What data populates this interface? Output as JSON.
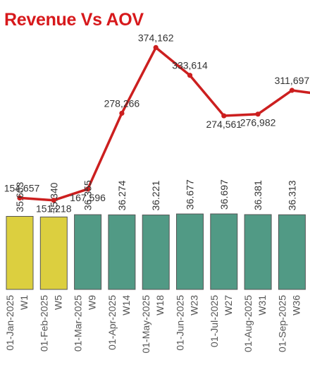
{
  "chart_data": {
    "type": "bar",
    "title": "Revenue Vs AOV",
    "categories": [
      {
        "date": "01-Jan-2025",
        "week": "W1"
      },
      {
        "date": "01-Feb-2025",
        "week": "W5"
      },
      {
        "date": "01-Mar-2025",
        "week": "W9"
      },
      {
        "date": "01-Apr-2025",
        "week": "W14"
      },
      {
        "date": "01-May-2025",
        "week": "W18"
      },
      {
        "date": "01-Jun-2025",
        "week": "W23"
      },
      {
        "date": "01-Jul-2025",
        "week": "W27"
      },
      {
        "date": "01-Aug-2025",
        "week": "W31"
      },
      {
        "date": "01-Sep-2025",
        "week": "W36"
      }
    ],
    "series": [
      {
        "kind": "line",
        "color": "#cc1f1f",
        "values": [
          154657,
          151218,
          167596,
          278266,
          374162,
          333614,
          274561,
          276982,
          311697
        ],
        "labels": [
          "154,657",
          "151,218",
          "167,596",
          "278,266",
          "374,162",
          "333,614",
          "274,561",
          "276,982",
          "311,697"
        ]
      },
      {
        "kind": "bar",
        "values": [
          35.603,
          35.34,
          36.355,
          36.274,
          36.221,
          36.677,
          36.697,
          36.381,
          36.313
        ],
        "labels": [
          "35.603",
          "35.340",
          "36.355",
          "36.274",
          "36.221",
          "36.677",
          "36.697",
          "36.381",
          "36.313"
        ],
        "colors": [
          "#dccf3f",
          "#dccf3f",
          "#519a85",
          "#519a85",
          "#519a85",
          "#519a85",
          "#519a85",
          "#519a85",
          "#519a85"
        ]
      }
    ],
    "bar_edge_color": "#555555",
    "partial_next_bar_color": "#519a85",
    "partial_next_point_value": 305000
  }
}
